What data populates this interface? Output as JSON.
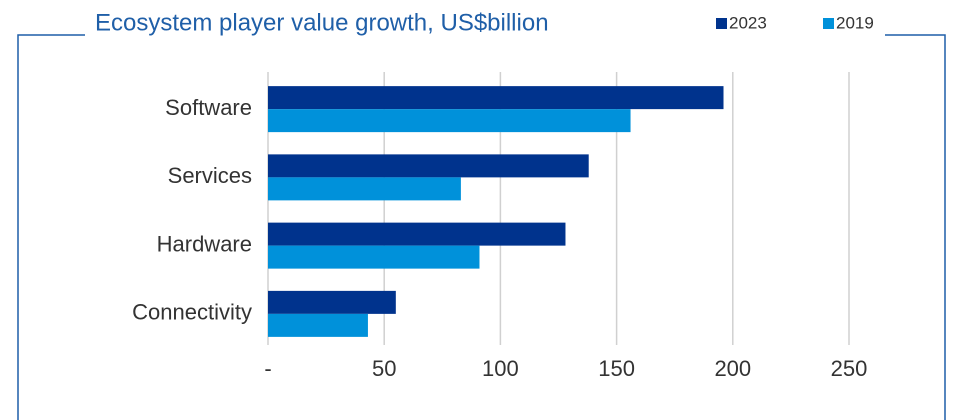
{
  "chart_data": {
    "type": "hbar",
    "title": "Ecosystem player value growth, US$billion",
    "categories": [
      "Software",
      "Services",
      "Hardware",
      "Connectivity"
    ],
    "series": [
      {
        "name": "2023",
        "color": "#00338d",
        "values": [
          196,
          138,
          128,
          55
        ]
      },
      {
        "name": "2019",
        "color": "#0091da",
        "values": [
          156,
          83,
          91,
          43
        ]
      }
    ],
    "xlim": [
      0,
      250
    ],
    "xticks": [
      {
        "value": 0,
        "label": "-"
      },
      50,
      100,
      150,
      200,
      250
    ],
    "grid": true
  }
}
